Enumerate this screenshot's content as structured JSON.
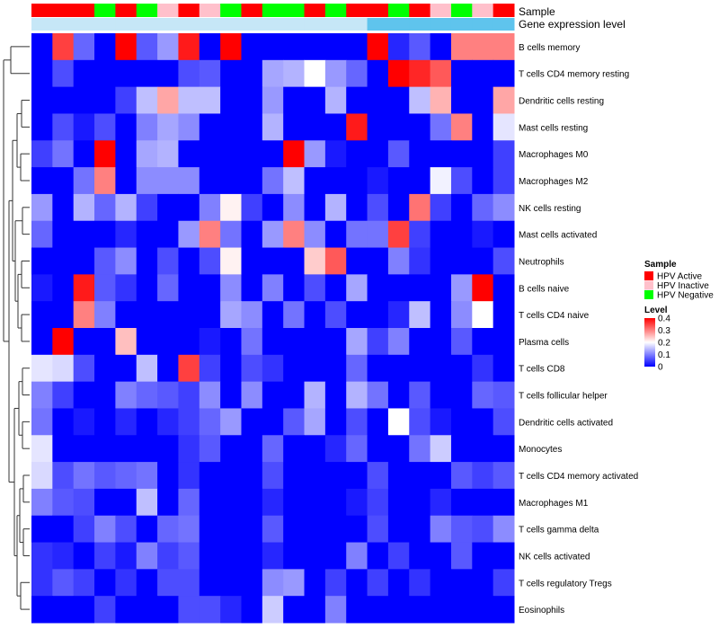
{
  "chart_data": {
    "type": "heatmap",
    "title": "",
    "annotation_tracks": [
      "Sample",
      "Gene expression level"
    ],
    "sample_groups": [
      "HPV Active",
      "HPV Active",
      "HPV Active",
      "HPV Negative",
      "HPV Active",
      "HPV Negative",
      "HPV Inactive",
      "HPV Active",
      "HPV Inactive",
      "HPV Negative",
      "HPV Active",
      "HPV Negative",
      "HPV Negative",
      "HPV Active",
      "HPV Negative",
      "HPV Active",
      "HPV Active",
      "HPV Negative",
      "HPV Active",
      "HPV Inactive",
      "HPV Negative",
      "HPV Inactive",
      "HPV Active"
    ],
    "expression_level": [
      0,
      0,
      0,
      0,
      0,
      0,
      0,
      0,
      0,
      0,
      0,
      0,
      0,
      0,
      0,
      0,
      1,
      1,
      1,
      1,
      1,
      1,
      1
    ],
    "rows": [
      "B cells memory",
      "T cells CD4 memory resting",
      "Dendritic cells resting",
      "Mast cells resting",
      "Macrophages M0",
      "Macrophages M2",
      "NK cells resting",
      "Mast cells activated",
      "Neutrophils",
      "B cells naive",
      "T cells CD4 naive",
      "Plasma cells",
      "T cells CD8",
      "T cells follicular helper",
      "Dendritic cells activated",
      "Monocytes",
      "T cells CD4 memory activated",
      "Macrophages M1",
      "T cells gamma delta",
      "NK cells activated",
      "T cells regulatory  Tregs",
      "Eosinophils"
    ],
    "values": [
      [
        0,
        0.35,
        0.08,
        0,
        0.4,
        0.07,
        0.12,
        0.38,
        0,
        0.4,
        0,
        0,
        0,
        0,
        0,
        0,
        0.4,
        0.03,
        0.07,
        0,
        0.3,
        0.3,
        0.3
      ],
      [
        0,
        0.06,
        0,
        0,
        0,
        0,
        0,
        0.06,
        0.07,
        0,
        0,
        0.13,
        0.14,
        0.2,
        0.12,
        0.08,
        0,
        0.42,
        0.37,
        0.33,
        0,
        0,
        0
      ],
      [
        0,
        0,
        0,
        0,
        0.05,
        0.15,
        0.27,
        0.15,
        0.15,
        0,
        0,
        0.12,
        0,
        0,
        0.14,
        0,
        0,
        0,
        0.15,
        0.26,
        0,
        0,
        0.27
      ],
      [
        0,
        0.06,
        0.02,
        0.06,
        0,
        0.1,
        0.13,
        0.11,
        0,
        0,
        0,
        0.14,
        0,
        0,
        0,
        0.38,
        0,
        0,
        0,
        0.09,
        0.3,
        0,
        0.18
      ],
      [
        0.05,
        0.09,
        0,
        0.41,
        0,
        0.13,
        0.14,
        0,
        0,
        0,
        0,
        0,
        0.42,
        0.12,
        0.02,
        0,
        0,
        0.07,
        0,
        0,
        0,
        0,
        0.05
      ],
      [
        0,
        0,
        0.09,
        0.3,
        0,
        0.11,
        0.11,
        0.11,
        0,
        0,
        0,
        0.09,
        0.15,
        0,
        0,
        0,
        0.02,
        0,
        0,
        0.19,
        0.06,
        0,
        0.05
      ],
      [
        0.12,
        0,
        0.14,
        0.08,
        0.14,
        0.05,
        0,
        0,
        0.1,
        0.21,
        0.05,
        0,
        0.11,
        0,
        0.14,
        0,
        0.06,
        0,
        0.31,
        0.05,
        0,
        0.08,
        0.11
      ],
      [
        0.08,
        0,
        0,
        0,
        0.03,
        0,
        0,
        0.12,
        0.3,
        0.09,
        0,
        0.12,
        0.3,
        0.11,
        0,
        0.09,
        0.09,
        0.35,
        0.05,
        0,
        0,
        0.02,
        0
      ],
      [
        0,
        0,
        0,
        0.07,
        0.11,
        0,
        0.06,
        0,
        0.06,
        0.21,
        0,
        0,
        0,
        0.24,
        0.33,
        0,
        0,
        0.1,
        0.04,
        0,
        0,
        0,
        0.06
      ],
      [
        0.02,
        0,
        0.38,
        0.07,
        0.04,
        0,
        0.08,
        0,
        0,
        0.11,
        0,
        0.1,
        0,
        0.06,
        0,
        0.13,
        0,
        0,
        0,
        0,
        0.12,
        0.42,
        0
      ],
      [
        0,
        0,
        0.3,
        0.1,
        0,
        0,
        0,
        0,
        0,
        0.13,
        0.11,
        0,
        0.09,
        0,
        0.06,
        0,
        0,
        0.03,
        0.15,
        0,
        0.11,
        0.2,
        0
      ],
      [
        0,
        0.4,
        0,
        0,
        0.25,
        0,
        0,
        0,
        0.02,
        0,
        0.09,
        0,
        0,
        0,
        0,
        0.13,
        0.05,
        0.1,
        0,
        0,
        0.07,
        0,
        0
      ],
      [
        0.18,
        0.17,
        0.06,
        0,
        0,
        0.15,
        0,
        0.35,
        0.05,
        0,
        0.06,
        0.04,
        0,
        0,
        0,
        0.08,
        0,
        0,
        0,
        0,
        0,
        0.04,
        0
      ],
      [
        0.1,
        0.05,
        0,
        0,
        0.1,
        0.08,
        0.07,
        0.05,
        0.11,
        0,
        0.11,
        0,
        0,
        0.14,
        0,
        0.14,
        0.09,
        0,
        0.07,
        0,
        0,
        0.08,
        0.07
      ],
      [
        0.09,
        0,
        0.02,
        0,
        0.03,
        0,
        0.03,
        0.05,
        0.08,
        0.12,
        0,
        0,
        0.07,
        0.13,
        0,
        0.06,
        0,
        0.2,
        0.06,
        0.02,
        0,
        0,
        0.06
      ],
      [
        0.18,
        0,
        0,
        0,
        0,
        0,
        0,
        0.04,
        0.07,
        0,
        0,
        0.08,
        0,
        0,
        0.03,
        0.08,
        0,
        0,
        0.09,
        0.16,
        0,
        0,
        0
      ],
      [
        0.17,
        0.06,
        0.09,
        0.07,
        0.08,
        0.09,
        0,
        0.04,
        0,
        0,
        0,
        0.06,
        0,
        0,
        0,
        0,
        0.06,
        0,
        0,
        0,
        0.07,
        0.05,
        0.07
      ],
      [
        0.1,
        0.07,
        0.06,
        0,
        0,
        0.15,
        0,
        0.08,
        0,
        0,
        0,
        0.03,
        0,
        0,
        0,
        0.02,
        0.05,
        0,
        0,
        0.03,
        0,
        0,
        0
      ],
      [
        0,
        0,
        0.05,
        0.1,
        0.06,
        0,
        0.08,
        0.09,
        0,
        0,
        0,
        0.07,
        0,
        0,
        0,
        0,
        0.06,
        0,
        0,
        0.1,
        0.07,
        0.06,
        0.11
      ],
      [
        0.04,
        0.03,
        0,
        0.05,
        0.02,
        0.1,
        0.05,
        0.07,
        0,
        0,
        0,
        0.03,
        0,
        0,
        0,
        0.1,
        0,
        0.05,
        0,
        0,
        0.07,
        0,
        0
      ],
      [
        0.04,
        0.07,
        0.05,
        0,
        0.04,
        0,
        0.06,
        0.06,
        0,
        0,
        0,
        0.11,
        0.12,
        0,
        0.05,
        0,
        0.05,
        0,
        0.04,
        0,
        0,
        0,
        0.05
      ],
      [
        0,
        0,
        0,
        0.05,
        0,
        0,
        0,
        0.06,
        0.06,
        0.03,
        0,
        0.16,
        0,
        0,
        0.1,
        0,
        0,
        0,
        0,
        0,
        0,
        0,
        0
      ]
    ],
    "legend": {
      "sample_title": "Sample",
      "sample_entries": [
        {
          "label": "HPV Active",
          "color": "#ff0000"
        },
        {
          "label": "HPV Inactive",
          "color": "#ffc0cb"
        },
        {
          "label": "HPV Negative",
          "color": "#00ff00"
        }
      ],
      "level_title": "Level",
      "level_ticks": [
        "0.4",
        "0.3",
        "0.2",
        "0.1",
        "0"
      ]
    },
    "level_range": [
      0,
      0.4
    ],
    "expression_colors": [
      "#c6e7f7",
      "#5fc4ed"
    ],
    "colors": {
      "low": "#0000ff",
      "mid": "#ffffff",
      "high": "#ff0000"
    }
  }
}
